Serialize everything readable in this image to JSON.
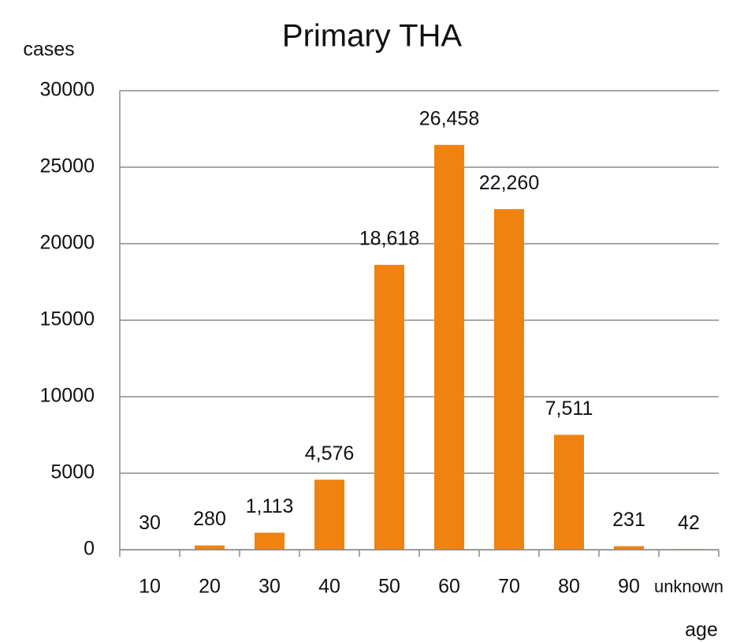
{
  "chart_data": {
    "type": "bar",
    "title": "Primary THA",
    "y_label": "cases",
    "x_label": "age",
    "categories": [
      "10",
      "20",
      "30",
      "40",
      "50",
      "60",
      "70",
      "80",
      "90",
      "unknown"
    ],
    "values": [
      30,
      280,
      1113,
      4576,
      18618,
      26458,
      22260,
      7511,
      231,
      42
    ],
    "value_labels": [
      "30",
      "280",
      "1,113",
      "4,576",
      "18,618",
      "26,458",
      "22,260",
      "7,511",
      "231",
      "42"
    ],
    "color": "#f0820f",
    "ylim": [
      0,
      30000
    ],
    "yticks": [
      0,
      5000,
      10000,
      15000,
      20000,
      25000,
      30000
    ],
    "grid": true
  }
}
